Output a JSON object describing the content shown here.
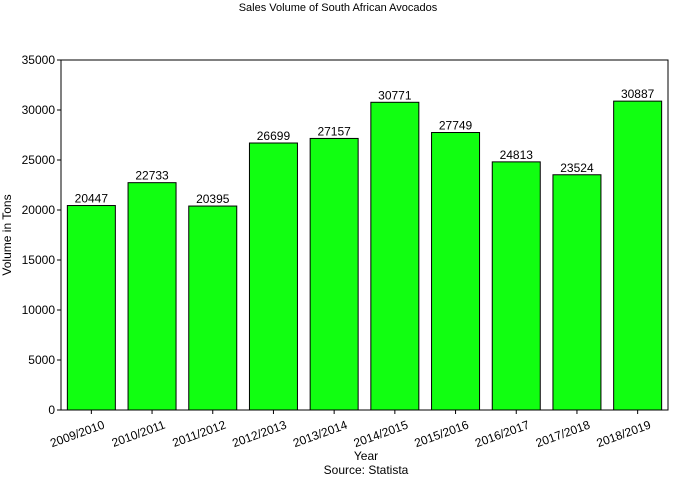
{
  "chart_data": {
    "type": "bar",
    "title": "Sales Volume of South African Avocados",
    "xlabel": "Year",
    "ylabel": "Volume in Tons",
    "source": "Source: Statista",
    "categories": [
      "2009/2010",
      "2010/2011",
      "2011/2012",
      "2012/2013",
      "2013/2014",
      "2014/2015",
      "2015/2016",
      "2016/2017",
      "2017/2018",
      "2018/2019"
    ],
    "values": [
      20447,
      22733,
      20395,
      26699,
      27157,
      30771,
      27749,
      24813,
      23524,
      30887
    ],
    "ylim": [
      0,
      35000
    ],
    "yticks": [
      0,
      5000,
      10000,
      15000,
      20000,
      25000,
      30000,
      35000
    ],
    "grid": false,
    "bar_color": "#11ff11"
  }
}
